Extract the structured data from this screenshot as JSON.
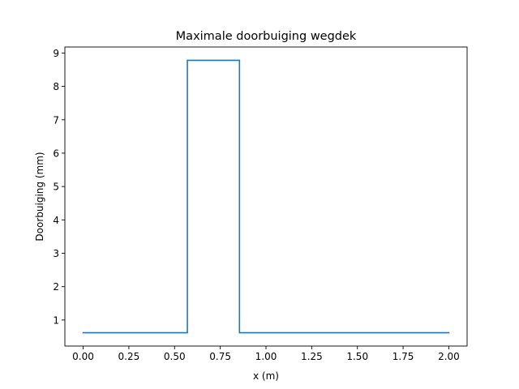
{
  "chart_data": {
    "type": "line",
    "title": "Maximale doorbuiging wegdek",
    "xlabel": "x (m)",
    "ylabel": "Doorbuiging (mm)",
    "xlim": [
      -0.1,
      2.1
    ],
    "ylim": [
      0.22,
      9.18
    ],
    "grid": false,
    "x_ticks": [
      0.0,
      0.25,
      0.5,
      0.75,
      1.0,
      1.25,
      1.5,
      1.75,
      2.0
    ],
    "x_tick_labels": [
      "0.00",
      "0.25",
      "0.50",
      "0.75",
      "1.00",
      "1.25",
      "1.50",
      "1.75",
      "2.00"
    ],
    "y_ticks": [
      1,
      2,
      3,
      4,
      5,
      6,
      7,
      8,
      9
    ],
    "y_tick_labels": [
      "1",
      "2",
      "3",
      "4",
      "5",
      "6",
      "7",
      "8",
      "9"
    ],
    "series": [
      {
        "color": "#1f77b4",
        "x": [
          0.0,
          0.57,
          0.57,
          0.855,
          0.855,
          2.0
        ],
        "y": [
          0.62,
          0.62,
          8.78,
          8.78,
          0.62,
          0.62
        ]
      }
    ]
  }
}
